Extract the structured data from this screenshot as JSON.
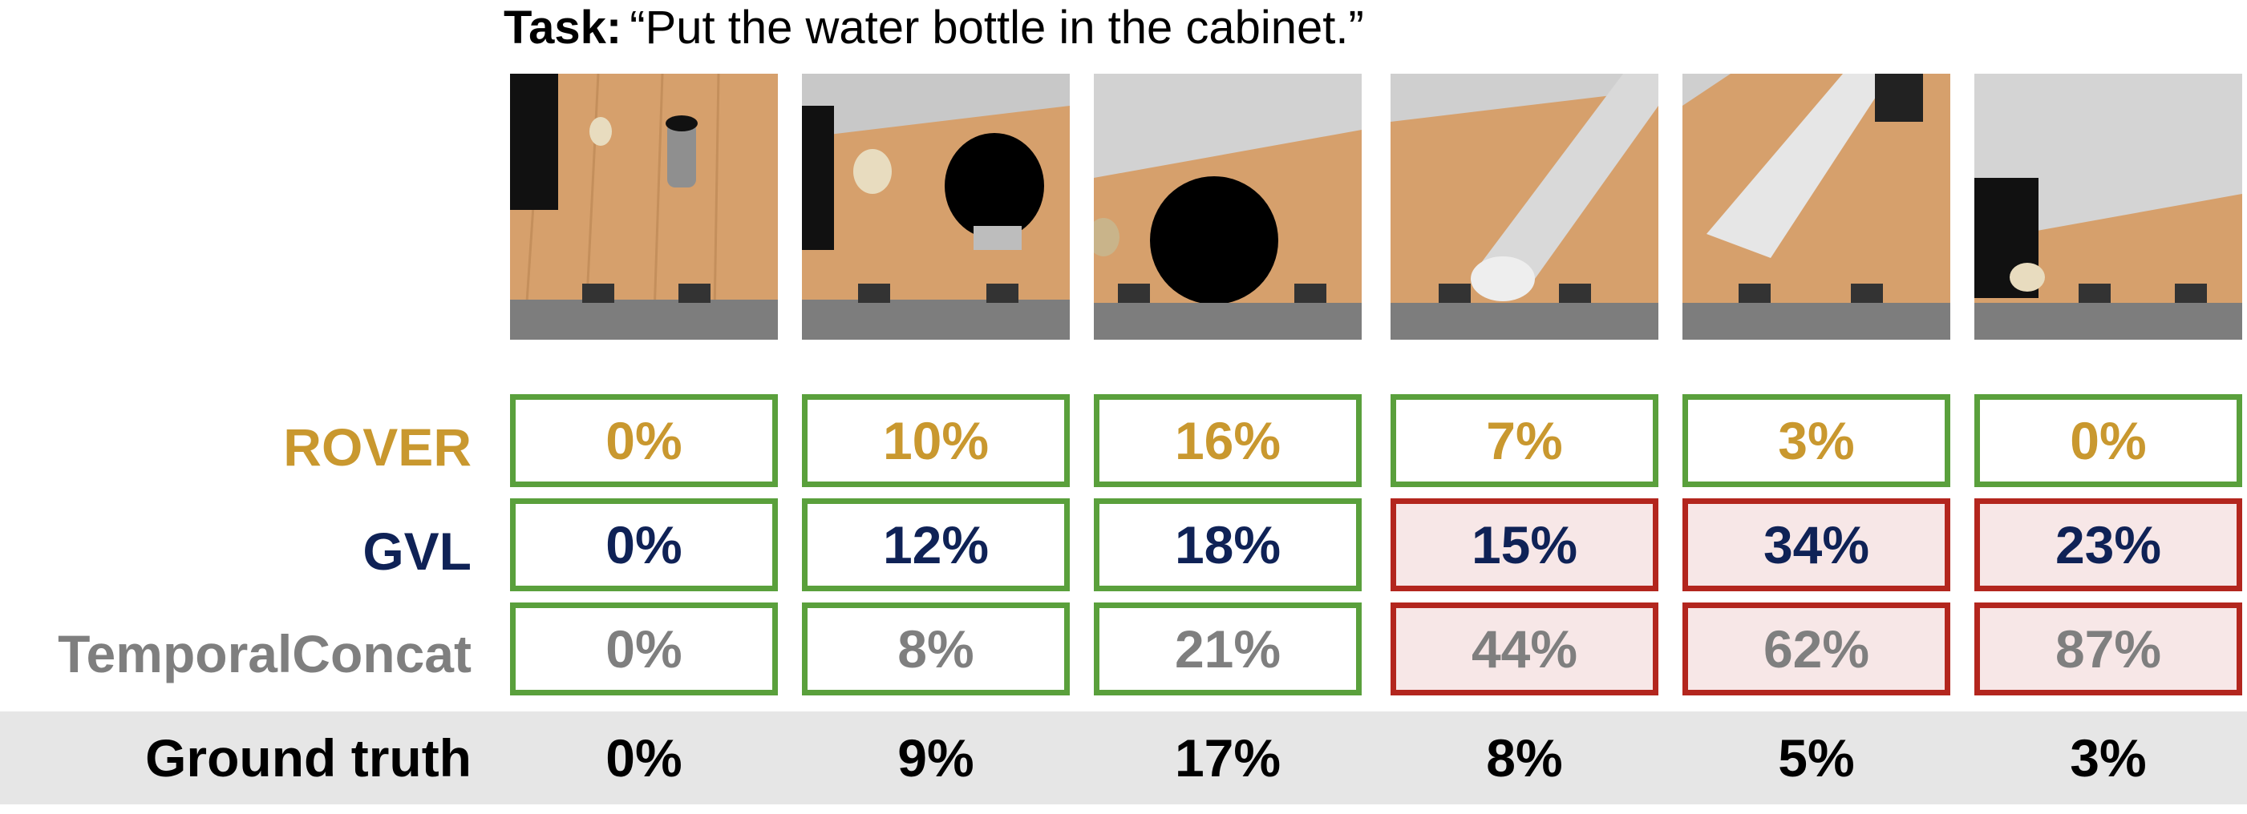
{
  "task": {
    "prefix": "Task:",
    "text": "“Put the water bottle in the cabinet.”"
  },
  "colors": {
    "rover": "#c9982f",
    "gvl": "#0f2256",
    "temporal": "#7f7f7f",
    "ground_truth": "#000000",
    "correct_border": "#5aa03c",
    "wrong_border": "#b3261e",
    "wrong_fill": "#f7e7e7"
  },
  "frames": [
    {
      "name": "frame-1"
    },
    {
      "name": "frame-2"
    },
    {
      "name": "frame-3"
    },
    {
      "name": "frame-4"
    },
    {
      "name": "frame-5"
    },
    {
      "name": "frame-6"
    }
  ],
  "rows": {
    "rover": {
      "label": "ROVER",
      "values": [
        "0%",
        "10%",
        "16%",
        "7%",
        "3%",
        "0%"
      ],
      "status": [
        "ok",
        "ok",
        "ok",
        "ok",
        "ok",
        "ok"
      ]
    },
    "gvl": {
      "label": "GVL",
      "values": [
        "0%",
        "12%",
        "18%",
        "15%",
        "34%",
        "23%"
      ],
      "status": [
        "ok",
        "ok",
        "ok",
        "bad",
        "bad",
        "bad"
      ]
    },
    "temporal": {
      "label": "TemporalConcat",
      "values": [
        "0%",
        "8%",
        "21%",
        "44%",
        "62%",
        "87%"
      ],
      "status": [
        "ok",
        "ok",
        "ok",
        "bad",
        "bad",
        "bad"
      ]
    },
    "ground_truth": {
      "label": "Ground truth",
      "values": [
        "0%",
        "9%",
        "17%",
        "8%",
        "5%",
        "3%"
      ]
    }
  }
}
